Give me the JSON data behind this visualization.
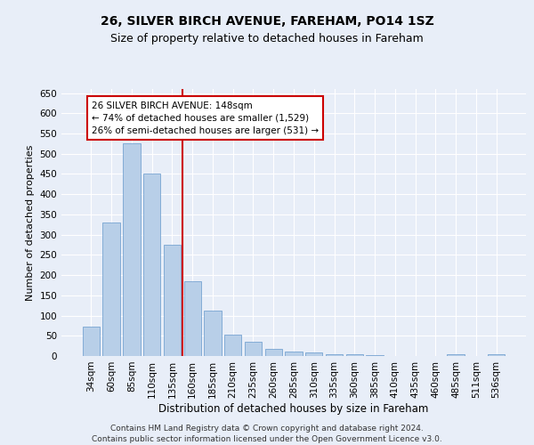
{
  "title1": "26, SILVER BIRCH AVENUE, FAREHAM, PO14 1SZ",
  "title2": "Size of property relative to detached houses in Fareham",
  "xlabel": "Distribution of detached houses by size in Fareham",
  "ylabel": "Number of detached properties",
  "categories": [
    "34sqm",
    "60sqm",
    "85sqm",
    "110sqm",
    "135sqm",
    "160sqm",
    "185sqm",
    "210sqm",
    "235sqm",
    "260sqm",
    "285sqm",
    "310sqm",
    "335sqm",
    "360sqm",
    "385sqm",
    "410sqm",
    "435sqm",
    "460sqm",
    "485sqm",
    "511sqm",
    "536sqm"
  ],
  "values": [
    72,
    330,
    525,
    450,
    275,
    185,
    113,
    52,
    35,
    17,
    12,
    8,
    5,
    4,
    2,
    1,
    0,
    0,
    5,
    0,
    5
  ],
  "bar_color": "#b8cfe8",
  "bar_edge_color": "#6699cc",
  "vline_color": "#cc0000",
  "annotation_text": "26 SILVER BIRCH AVENUE: 148sqm\n← 74% of detached houses are smaller (1,529)\n26% of semi-detached houses are larger (531) →",
  "annotation_box_facecolor": "#ffffff",
  "annotation_box_edgecolor": "#cc0000",
  "ylim": [
    0,
    660
  ],
  "yticks": [
    0,
    50,
    100,
    150,
    200,
    250,
    300,
    350,
    400,
    450,
    500,
    550,
    600,
    650
  ],
  "footer": "Contains HM Land Registry data © Crown copyright and database right 2024.\nContains public sector information licensed under the Open Government Licence v3.0.",
  "bg_color": "#e8eef8",
  "plot_bg_color": "#e8eef8",
  "title1_fontsize": 10,
  "title2_fontsize": 9,
  "xlabel_fontsize": 8.5,
  "ylabel_fontsize": 8,
  "tick_fontsize": 7.5,
  "annotation_fontsize": 7.5,
  "footer_fontsize": 6.5,
  "grid_color": "#ffffff",
  "vline_x_data": 4.5
}
